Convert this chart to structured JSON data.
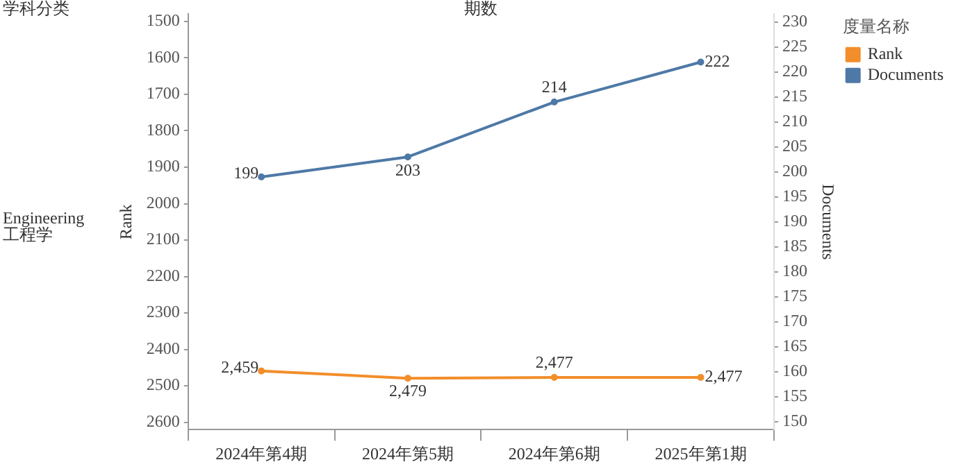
{
  "chart_data": {
    "type": "line",
    "xlabel": "期数",
    "ylabel": "Rank",
    "y2label": "Documents",
    "legend_title": "度量名称",
    "annotations": [
      "学科分类",
      "Engineering\n工程学"
    ],
    "categories": [
      "2024年第4期",
      "2024年第5期",
      "2024年第6期",
      "2025年第1期"
    ],
    "series": [
      {
        "name": "Rank",
        "color": "#f28e2b",
        "values": [
          2459,
          2479,
          2477,
          2477
        ],
        "value_labels": [
          "2,459",
          "2,479",
          "2,477",
          "2,477"
        ]
      },
      {
        "name": "Documents",
        "color": "#4e79a7",
        "axis": "y2",
        "values": [
          199,
          203,
          214,
          222
        ],
        "value_labels": [
          "199",
          "203",
          "214",
          "222"
        ]
      }
    ],
    "ylim": [
      2620,
      1480
    ],
    "yticks": [
      1500,
      1600,
      1700,
      1800,
      1900,
      2000,
      2100,
      2200,
      2300,
      2400,
      2500,
      2600
    ],
    "y2lim": [
      148.4,
      231.6
    ],
    "y2ticks": [
      150,
      155,
      160,
      165,
      170,
      175,
      180,
      185,
      190,
      195,
      200,
      205,
      210,
      215,
      220,
      225,
      230
    ],
    "legend": "top right",
    "marker": "circle",
    "line_style": "solid",
    "grid": false
  }
}
